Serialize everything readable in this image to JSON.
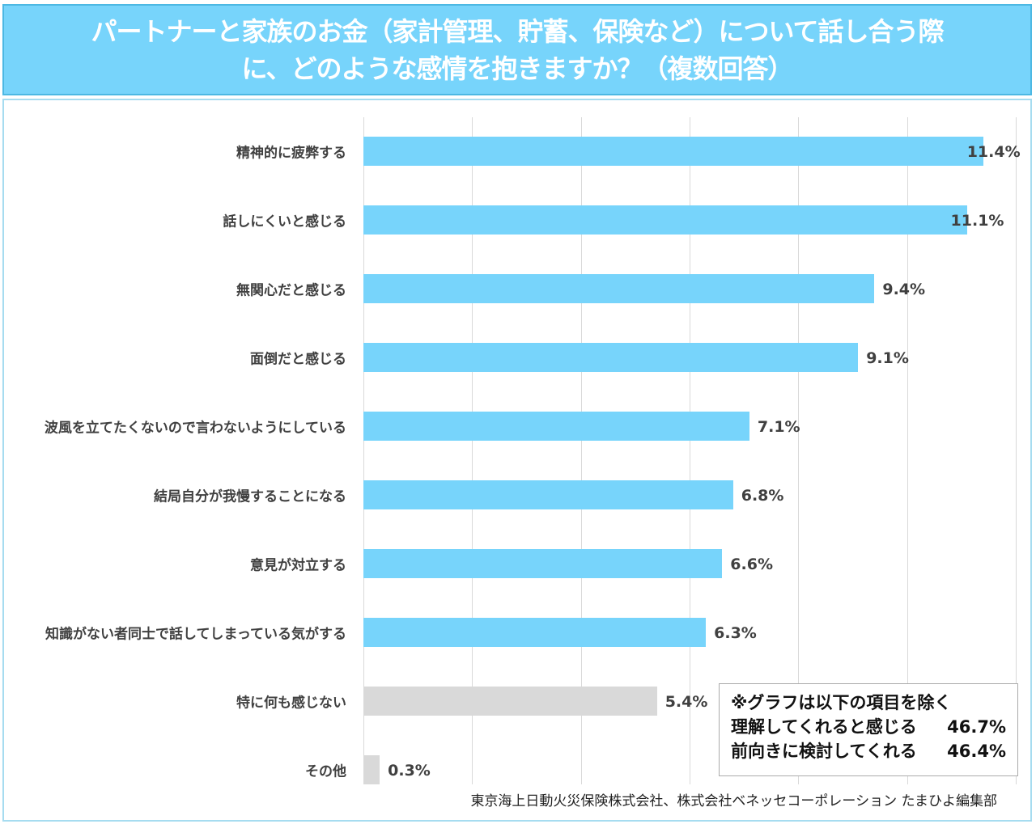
{
  "title": {
    "line1": "パートナーと家族のお金（家計管理、貯蓄、保険など）について話し合う際",
    "line2": "に、どのような感情を抱きますか？（複数回答）"
  },
  "chart_data": {
    "type": "bar",
    "orientation": "horizontal",
    "title": "パートナーと家族のお金（家計管理、貯蓄、保険など）について話し合う際に、どのような感情を抱きますか？（複数回答）",
    "categories": [
      "精神的に疲弊する",
      "話しにくいと感じる",
      "無関心だと感じる",
      "面倒だと感じる",
      "波風を立てたくないので言わないようにしている",
      "結局自分が我慢することになる",
      "意見が対立する",
      "知識がない者同士で話してしまっている気がする",
      "特に何も感じない",
      "その他"
    ],
    "values": [
      11.4,
      11.1,
      9.4,
      9.1,
      7.1,
      6.8,
      6.6,
      6.3,
      5.4,
      0.3
    ],
    "data_labels": [
      "11.4%",
      "11.1%",
      "9.4%",
      "9.1%",
      "7.1%",
      "6.8%",
      "6.6%",
      "6.3%",
      "5.4%",
      "0.3%"
    ],
    "unit": "%",
    "xlim": [
      0,
      12
    ],
    "grid_step": 2,
    "grid": true,
    "colors": [
      "#77d4fb",
      "#77d4fb",
      "#77d4fb",
      "#77d4fb",
      "#77d4fb",
      "#77d4fb",
      "#77d4fb",
      "#77d4fb",
      "#d9d9d9",
      "#d9d9d9"
    ]
  },
  "note": {
    "heading": "※グラフは以下の項目を除く",
    "items": [
      {
        "label": "理解してくれると感じる",
        "value": "46.7%"
      },
      {
        "label": "前向きに検討してくれる",
        "value": "46.4%"
      }
    ]
  },
  "source": "東京海上日動火災保険株式会社、株式会社ベネッセコーポレーション たまひよ編集部"
}
